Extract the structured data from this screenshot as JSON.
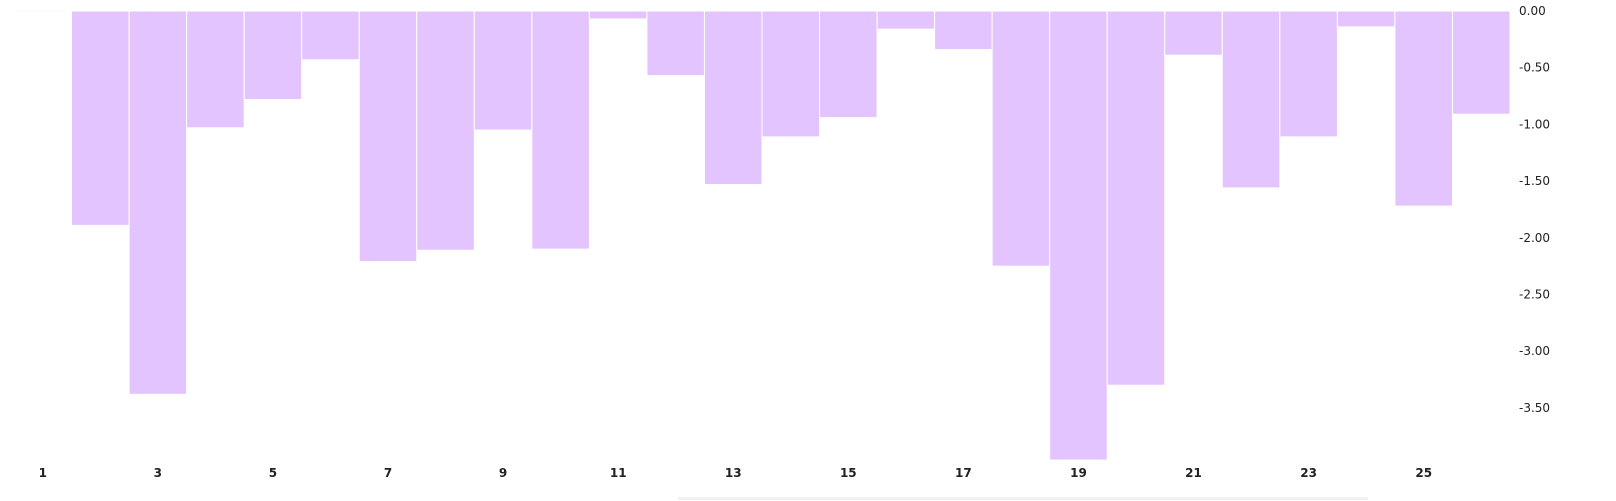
{
  "chart_data": {
    "type": "bar",
    "categories": [
      1,
      2,
      3,
      4,
      5,
      6,
      7,
      8,
      9,
      10,
      11,
      12,
      13,
      14,
      15,
      16,
      17,
      18,
      19,
      20,
      21,
      22,
      23,
      24,
      25,
      26
    ],
    "values": [
      -0.01,
      -1.89,
      -3.38,
      -1.03,
      -0.78,
      -0.43,
      -2.21,
      -2.11,
      -1.05,
      -2.1,
      -0.07,
      -0.57,
      -1.53,
      -1.11,
      -0.94,
      -0.16,
      -0.34,
      -2.25,
      -3.96,
      -3.3,
      -0.39,
      -1.56,
      -1.11,
      -0.14,
      -1.72,
      -0.91
    ],
    "x_tick_labels": [
      "1",
      "3",
      "5",
      "7",
      "9",
      "11",
      "13",
      "15",
      "17",
      "19",
      "21",
      "23",
      "25"
    ],
    "y_tick_labels": [
      "0.00",
      "-0.50",
      "-1.00",
      "-1.50",
      "-2.00",
      "-2.50",
      "-3.00",
      "-3.50"
    ],
    "y_ticks": [
      0,
      -0.5,
      -1,
      -1.5,
      -2,
      -2.5,
      -3,
      -3.5
    ],
    "ylim": [
      -3.96,
      0
    ],
    "y_axis_side": "right",
    "grid": false,
    "legend": "none",
    "title": "",
    "xlabel": "",
    "ylabel": "",
    "bar_color": "#e3c4ff",
    "bar_edge_color": "#ffffff"
  }
}
